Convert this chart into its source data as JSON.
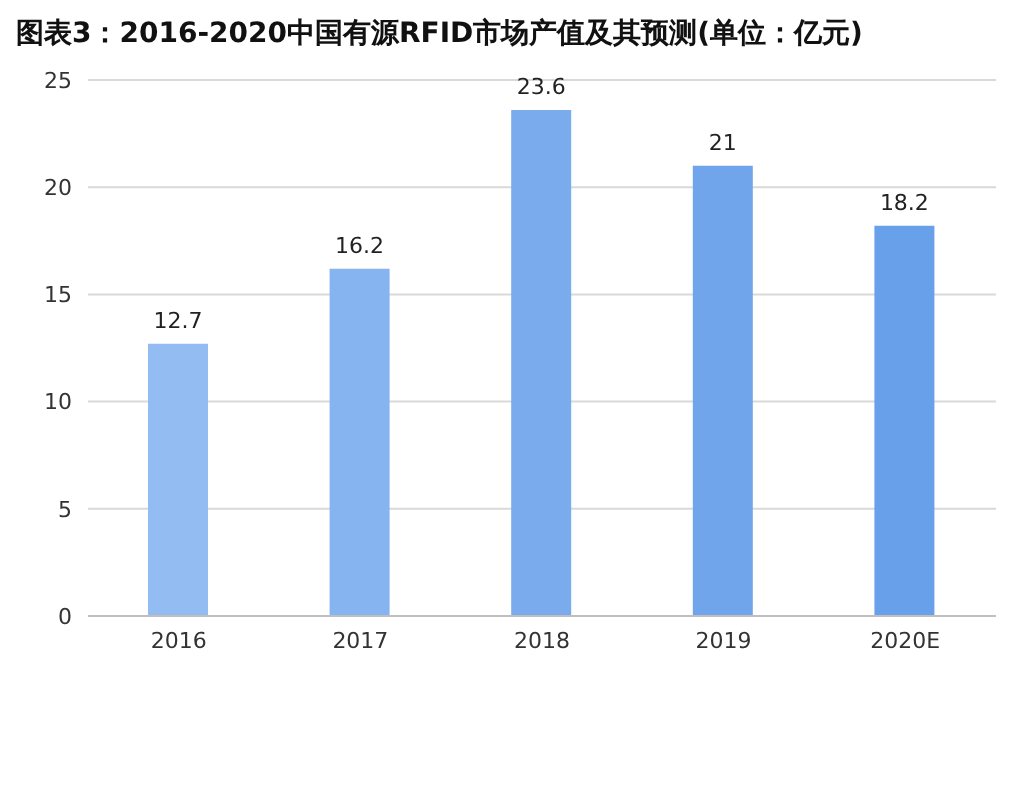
{
  "chart_data": {
    "type": "bar",
    "title": "图表3：2016-2020中国有源RFID市场产值及其预测(单位：亿元)",
    "categories": [
      "2016",
      "2017",
      "2018",
      "2019",
      "2020E"
    ],
    "values": [
      12.7,
      16.2,
      23.6,
      21,
      18.2
    ],
    "colors": [
      "#93bdf2",
      "#86b4f0",
      "#7aabed",
      "#70a4eb",
      "#69a0ea"
    ],
    "ylim": [
      0,
      25
    ],
    "yticks": [
      0,
      5,
      10,
      15,
      20,
      25
    ],
    "grid": "y",
    "data_labels": true
  }
}
